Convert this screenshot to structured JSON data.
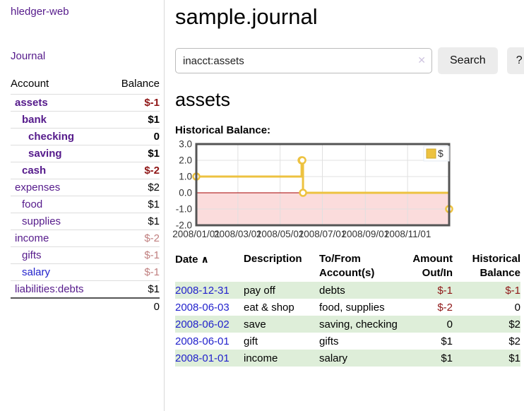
{
  "sidebar": {
    "app_title": "hledger-web",
    "journal_link": "Journal",
    "accounts": {
      "account_header": "Account",
      "balance_header": "Balance",
      "rows": [
        {
          "name": "assets",
          "balance": "$-1"
        },
        {
          "name": "bank",
          "balance": "$1"
        },
        {
          "name": "checking",
          "balance": "0"
        },
        {
          "name": "saving",
          "balance": "$1"
        },
        {
          "name": "cash",
          "balance": "$-2"
        },
        {
          "name": "expenses",
          "balance": "$2"
        },
        {
          "name": "food",
          "balance": "$1"
        },
        {
          "name": "supplies",
          "balance": "$1"
        },
        {
          "name": "income",
          "balance": "$-2"
        },
        {
          "name": "gifts",
          "balance": "$-1"
        },
        {
          "name": "salary",
          "balance": "$-1"
        },
        {
          "name": "liabilities:debts",
          "balance": "$1"
        }
      ],
      "total": "0"
    }
  },
  "main": {
    "title": "sample.journal",
    "search": {
      "query": "inacct:assets",
      "clear_glyph": "✕",
      "search_label": "Search",
      "help_label": "?"
    },
    "account_heading": "assets",
    "chart_label": "Historical Balance:"
  },
  "chart_data": {
    "type": "line",
    "step": true,
    "title": "Historical Balance",
    "series": [
      {
        "name": "$",
        "color": "#edc240",
        "points": [
          [
            "2008-01-01",
            1
          ],
          [
            "2008-06-01",
            2
          ],
          [
            "2008-06-02",
            2
          ],
          [
            "2008-06-03",
            0
          ],
          [
            "2008-12-31",
            -1
          ]
        ]
      }
    ],
    "xrange": [
      "2008-01-01",
      "2008-12-31"
    ],
    "x_ticks": [
      {
        "date": "2008-01-01",
        "label": "2008/01/01"
      },
      {
        "date": "2008-03-01",
        "label": "2008/03/01"
      },
      {
        "date": "2008-05-01",
        "label": "2008/05/01"
      },
      {
        "date": "2008-07-01",
        "label": "2008/07/01"
      },
      {
        "date": "2008-09-01",
        "label": "2008/09/01"
      },
      {
        "date": "2008-11-01",
        "label": "2008/11/01"
      }
    ],
    "y_ticks": [
      {
        "value": 3,
        "label": "3.0"
      },
      {
        "value": 2,
        "label": "2.0"
      },
      {
        "value": 1,
        "label": "1.0"
      },
      {
        "value": 0,
        "label": "0.0"
      },
      {
        "value": -1,
        "label": "-1.0"
      },
      {
        "value": -2,
        "label": "-2.0"
      }
    ],
    "ylim": [
      -2,
      3
    ],
    "grid": true,
    "legend": {
      "label": "$",
      "position": "top-right"
    },
    "negative_region_fill": "#fbdcdc",
    "zero_line_color": "#a40000",
    "grid_color": "#e0e0e0",
    "border_color": "#545454"
  },
  "register": {
    "headers": {
      "date": "Date",
      "description": "Description",
      "accounts": "To/From Account(s)",
      "amount": "Amount Out/In",
      "balance": "Historical Balance"
    },
    "sort_asc_glyph": "∧",
    "rows": [
      {
        "date": "2008-12-31",
        "description": "pay off",
        "accounts": "debts",
        "amount": "$-1",
        "balance": "$-1"
      },
      {
        "date": "2008-06-03",
        "description": "eat & shop",
        "accounts": "food, supplies",
        "amount": "$-2",
        "balance": "0"
      },
      {
        "date": "2008-06-02",
        "description": "save",
        "accounts": "saving, checking",
        "amount": "0",
        "balance": "$2"
      },
      {
        "date": "2008-06-01",
        "description": "gift",
        "accounts": "gifts",
        "amount": "$1",
        "balance": "$2"
      },
      {
        "date": "2008-01-01",
        "description": "income",
        "accounts": "salary",
        "amount": "$1",
        "balance": "$1"
      }
    ]
  }
}
